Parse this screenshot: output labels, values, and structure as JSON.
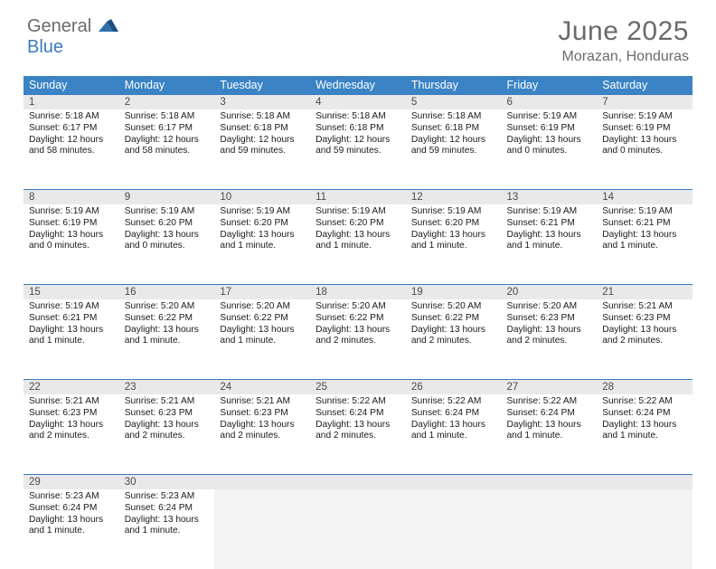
{
  "logo": {
    "line1": "General",
    "line2": "Blue"
  },
  "title": "June 2025",
  "location": "Morazan, Honduras",
  "colors": {
    "header_bg": "#3a83c5",
    "accent_border": "#3a7bbf",
    "daynum_bg": "#e9e9e9",
    "text_muted": "#6a6a6a",
    "page_bg": "#ffffff"
  },
  "weekdays": [
    "Sunday",
    "Monday",
    "Tuesday",
    "Wednesday",
    "Thursday",
    "Friday",
    "Saturday"
  ],
  "days": [
    {
      "n": "1",
      "sr": "Sunrise: 5:18 AM",
      "ss": "Sunset: 6:17 PM",
      "d1": "Daylight: 12 hours",
      "d2": "and 58 minutes."
    },
    {
      "n": "2",
      "sr": "Sunrise: 5:18 AM",
      "ss": "Sunset: 6:17 PM",
      "d1": "Daylight: 12 hours",
      "d2": "and 58 minutes."
    },
    {
      "n": "3",
      "sr": "Sunrise: 5:18 AM",
      "ss": "Sunset: 6:18 PM",
      "d1": "Daylight: 12 hours",
      "d2": "and 59 minutes."
    },
    {
      "n": "4",
      "sr": "Sunrise: 5:18 AM",
      "ss": "Sunset: 6:18 PM",
      "d1": "Daylight: 12 hours",
      "d2": "and 59 minutes."
    },
    {
      "n": "5",
      "sr": "Sunrise: 5:18 AM",
      "ss": "Sunset: 6:18 PM",
      "d1": "Daylight: 12 hours",
      "d2": "and 59 minutes."
    },
    {
      "n": "6",
      "sr": "Sunrise: 5:19 AM",
      "ss": "Sunset: 6:19 PM",
      "d1": "Daylight: 13 hours",
      "d2": "and 0 minutes."
    },
    {
      "n": "7",
      "sr": "Sunrise: 5:19 AM",
      "ss": "Sunset: 6:19 PM",
      "d1": "Daylight: 13 hours",
      "d2": "and 0 minutes."
    },
    {
      "n": "8",
      "sr": "Sunrise: 5:19 AM",
      "ss": "Sunset: 6:19 PM",
      "d1": "Daylight: 13 hours",
      "d2": "and 0 minutes."
    },
    {
      "n": "9",
      "sr": "Sunrise: 5:19 AM",
      "ss": "Sunset: 6:20 PM",
      "d1": "Daylight: 13 hours",
      "d2": "and 0 minutes."
    },
    {
      "n": "10",
      "sr": "Sunrise: 5:19 AM",
      "ss": "Sunset: 6:20 PM",
      "d1": "Daylight: 13 hours",
      "d2": "and 1 minute."
    },
    {
      "n": "11",
      "sr": "Sunrise: 5:19 AM",
      "ss": "Sunset: 6:20 PM",
      "d1": "Daylight: 13 hours",
      "d2": "and 1 minute."
    },
    {
      "n": "12",
      "sr": "Sunrise: 5:19 AM",
      "ss": "Sunset: 6:20 PM",
      "d1": "Daylight: 13 hours",
      "d2": "and 1 minute."
    },
    {
      "n": "13",
      "sr": "Sunrise: 5:19 AM",
      "ss": "Sunset: 6:21 PM",
      "d1": "Daylight: 13 hours",
      "d2": "and 1 minute."
    },
    {
      "n": "14",
      "sr": "Sunrise: 5:19 AM",
      "ss": "Sunset: 6:21 PM",
      "d1": "Daylight: 13 hours",
      "d2": "and 1 minute."
    },
    {
      "n": "15",
      "sr": "Sunrise: 5:19 AM",
      "ss": "Sunset: 6:21 PM",
      "d1": "Daylight: 13 hours",
      "d2": "and 1 minute."
    },
    {
      "n": "16",
      "sr": "Sunrise: 5:20 AM",
      "ss": "Sunset: 6:22 PM",
      "d1": "Daylight: 13 hours",
      "d2": "and 1 minute."
    },
    {
      "n": "17",
      "sr": "Sunrise: 5:20 AM",
      "ss": "Sunset: 6:22 PM",
      "d1": "Daylight: 13 hours",
      "d2": "and 1 minute."
    },
    {
      "n": "18",
      "sr": "Sunrise: 5:20 AM",
      "ss": "Sunset: 6:22 PM",
      "d1": "Daylight: 13 hours",
      "d2": "and 2 minutes."
    },
    {
      "n": "19",
      "sr": "Sunrise: 5:20 AM",
      "ss": "Sunset: 6:22 PM",
      "d1": "Daylight: 13 hours",
      "d2": "and 2 minutes."
    },
    {
      "n": "20",
      "sr": "Sunrise: 5:20 AM",
      "ss": "Sunset: 6:23 PM",
      "d1": "Daylight: 13 hours",
      "d2": "and 2 minutes."
    },
    {
      "n": "21",
      "sr": "Sunrise: 5:21 AM",
      "ss": "Sunset: 6:23 PM",
      "d1": "Daylight: 13 hours",
      "d2": "and 2 minutes."
    },
    {
      "n": "22",
      "sr": "Sunrise: 5:21 AM",
      "ss": "Sunset: 6:23 PM",
      "d1": "Daylight: 13 hours",
      "d2": "and 2 minutes."
    },
    {
      "n": "23",
      "sr": "Sunrise: 5:21 AM",
      "ss": "Sunset: 6:23 PM",
      "d1": "Daylight: 13 hours",
      "d2": "and 2 minutes."
    },
    {
      "n": "24",
      "sr": "Sunrise: 5:21 AM",
      "ss": "Sunset: 6:23 PM",
      "d1": "Daylight: 13 hours",
      "d2": "and 2 minutes."
    },
    {
      "n": "25",
      "sr": "Sunrise: 5:22 AM",
      "ss": "Sunset: 6:24 PM",
      "d1": "Daylight: 13 hours",
      "d2": "and 2 minutes."
    },
    {
      "n": "26",
      "sr": "Sunrise: 5:22 AM",
      "ss": "Sunset: 6:24 PM",
      "d1": "Daylight: 13 hours",
      "d2": "and 1 minute."
    },
    {
      "n": "27",
      "sr": "Sunrise: 5:22 AM",
      "ss": "Sunset: 6:24 PM",
      "d1": "Daylight: 13 hours",
      "d2": "and 1 minute."
    },
    {
      "n": "28",
      "sr": "Sunrise: 5:22 AM",
      "ss": "Sunset: 6:24 PM",
      "d1": "Daylight: 13 hours",
      "d2": "and 1 minute."
    },
    {
      "n": "29",
      "sr": "Sunrise: 5:23 AM",
      "ss": "Sunset: 6:24 PM",
      "d1": "Daylight: 13 hours",
      "d2": "and 1 minute."
    },
    {
      "n": "30",
      "sr": "Sunrise: 5:23 AM",
      "ss": "Sunset: 6:24 PM",
      "d1": "Daylight: 13 hours",
      "d2": "and 1 minute."
    }
  ],
  "layout": {
    "first_day_col": 0,
    "total_days": 30,
    "cols": 7
  }
}
